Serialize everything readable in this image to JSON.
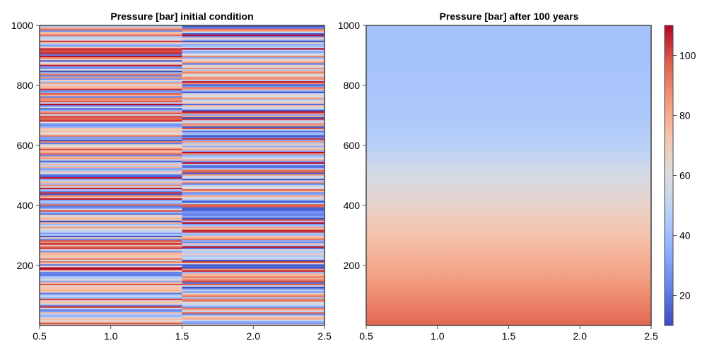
{
  "chart_data": [
    {
      "type": "heatmap",
      "title": "Pressure [bar] initial condition",
      "x_ticks": [
        0.5,
        1.0,
        1.5,
        2.0,
        2.5
      ],
      "x_tick_labels": [
        "0.5",
        "1.0",
        "1.5",
        "2.0",
        "2.5"
      ],
      "y_ticks": [
        200,
        400,
        600,
        800,
        1000
      ],
      "y_tick_labels": [
        "200",
        "400",
        "600",
        "800",
        "1000"
      ],
      "xlim": [
        0.5,
        2.5
      ],
      "ylim": [
        0,
        1000
      ],
      "columns": [
        {
          "x_from": 0.5,
          "x_to": 1.5,
          "description_values": "random layered pressure, 10-110 bar"
        },
        {
          "x_from": 1.5,
          "x_to": 2.5,
          "description_values": "random layered pressure, 10-110 bar"
        }
      ],
      "value_range": [
        10,
        110
      ]
    },
    {
      "type": "heatmap",
      "title": "Pressure [bar] after 100 years",
      "x_ticks": [
        0.5,
        1.0,
        1.5,
        2.0,
        2.5
      ],
      "x_tick_labels": [
        "0.5",
        "1.0",
        "1.5",
        "2.0",
        "2.5"
      ],
      "y_ticks": [
        200,
        400,
        600,
        800,
        1000
      ],
      "y_tick_labels": [
        "200",
        "400",
        "600",
        "800",
        "1000"
      ],
      "xlim": [
        0.5,
        2.5
      ],
      "ylim": [
        0,
        1000
      ],
      "profile": [
        {
          "y": 0,
          "value": 96
        },
        {
          "y": 100,
          "value": 88
        },
        {
          "y": 200,
          "value": 80
        },
        {
          "y": 300,
          "value": 73
        },
        {
          "y": 400,
          "value": 65
        },
        {
          "y": 500,
          "value": 57
        },
        {
          "y": 600,
          "value": 48
        },
        {
          "y": 700,
          "value": 44
        },
        {
          "y": 800,
          "value": 43
        },
        {
          "y": 900,
          "value": 42
        },
        {
          "y": 1000,
          "value": 42
        }
      ]
    }
  ],
  "colorbar": {
    "limits": [
      10,
      110
    ],
    "ticks": [
      20,
      40,
      60,
      80,
      100
    ],
    "tick_labels": [
      "20",
      "40",
      "60",
      "80",
      "100"
    ],
    "colormap": "coolwarm"
  }
}
